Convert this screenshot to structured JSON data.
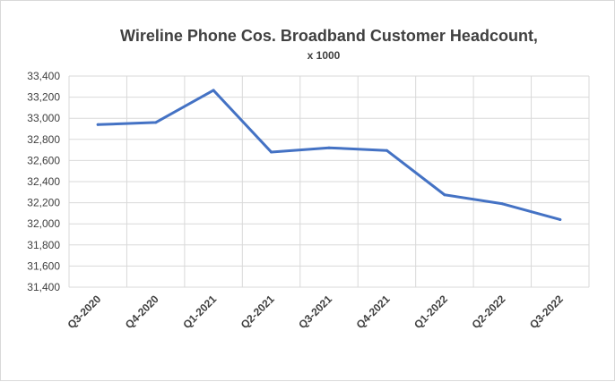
{
  "chart_data": {
    "type": "line",
    "title": "Wireline Phone Cos. Broadband  Customer Headcount,",
    "subtitle": "x 1000",
    "xlabel": "",
    "ylabel": "",
    "categories": [
      "Q3-2020",
      "Q4-2020",
      "Q1-2021",
      "Q2-2021",
      "Q3-2021",
      "Q4-2021",
      "Q1-2022",
      "Q2-2022",
      "Q3-2022"
    ],
    "series": [
      {
        "values": [
          32940,
          32960,
          33265,
          32680,
          32720,
          32695,
          32275,
          32190,
          32040
        ]
      }
    ],
    "ylim": [
      31400,
      33400
    ],
    "yticks": [
      31400,
      31600,
      31800,
      32000,
      32200,
      32400,
      32600,
      32800,
      33000,
      33200,
      33400
    ],
    "ytick_labels": [
      "31,400",
      "31,600",
      "31,800",
      "32,000",
      "32,200",
      "32,400",
      "32,600",
      "32,800",
      "33,000",
      "33,200",
      "33,400"
    ],
    "grid": true,
    "legend": "none",
    "colors": {
      "line": "#4472c4",
      "grid": "#d9d9d9",
      "text": "#404040"
    }
  }
}
